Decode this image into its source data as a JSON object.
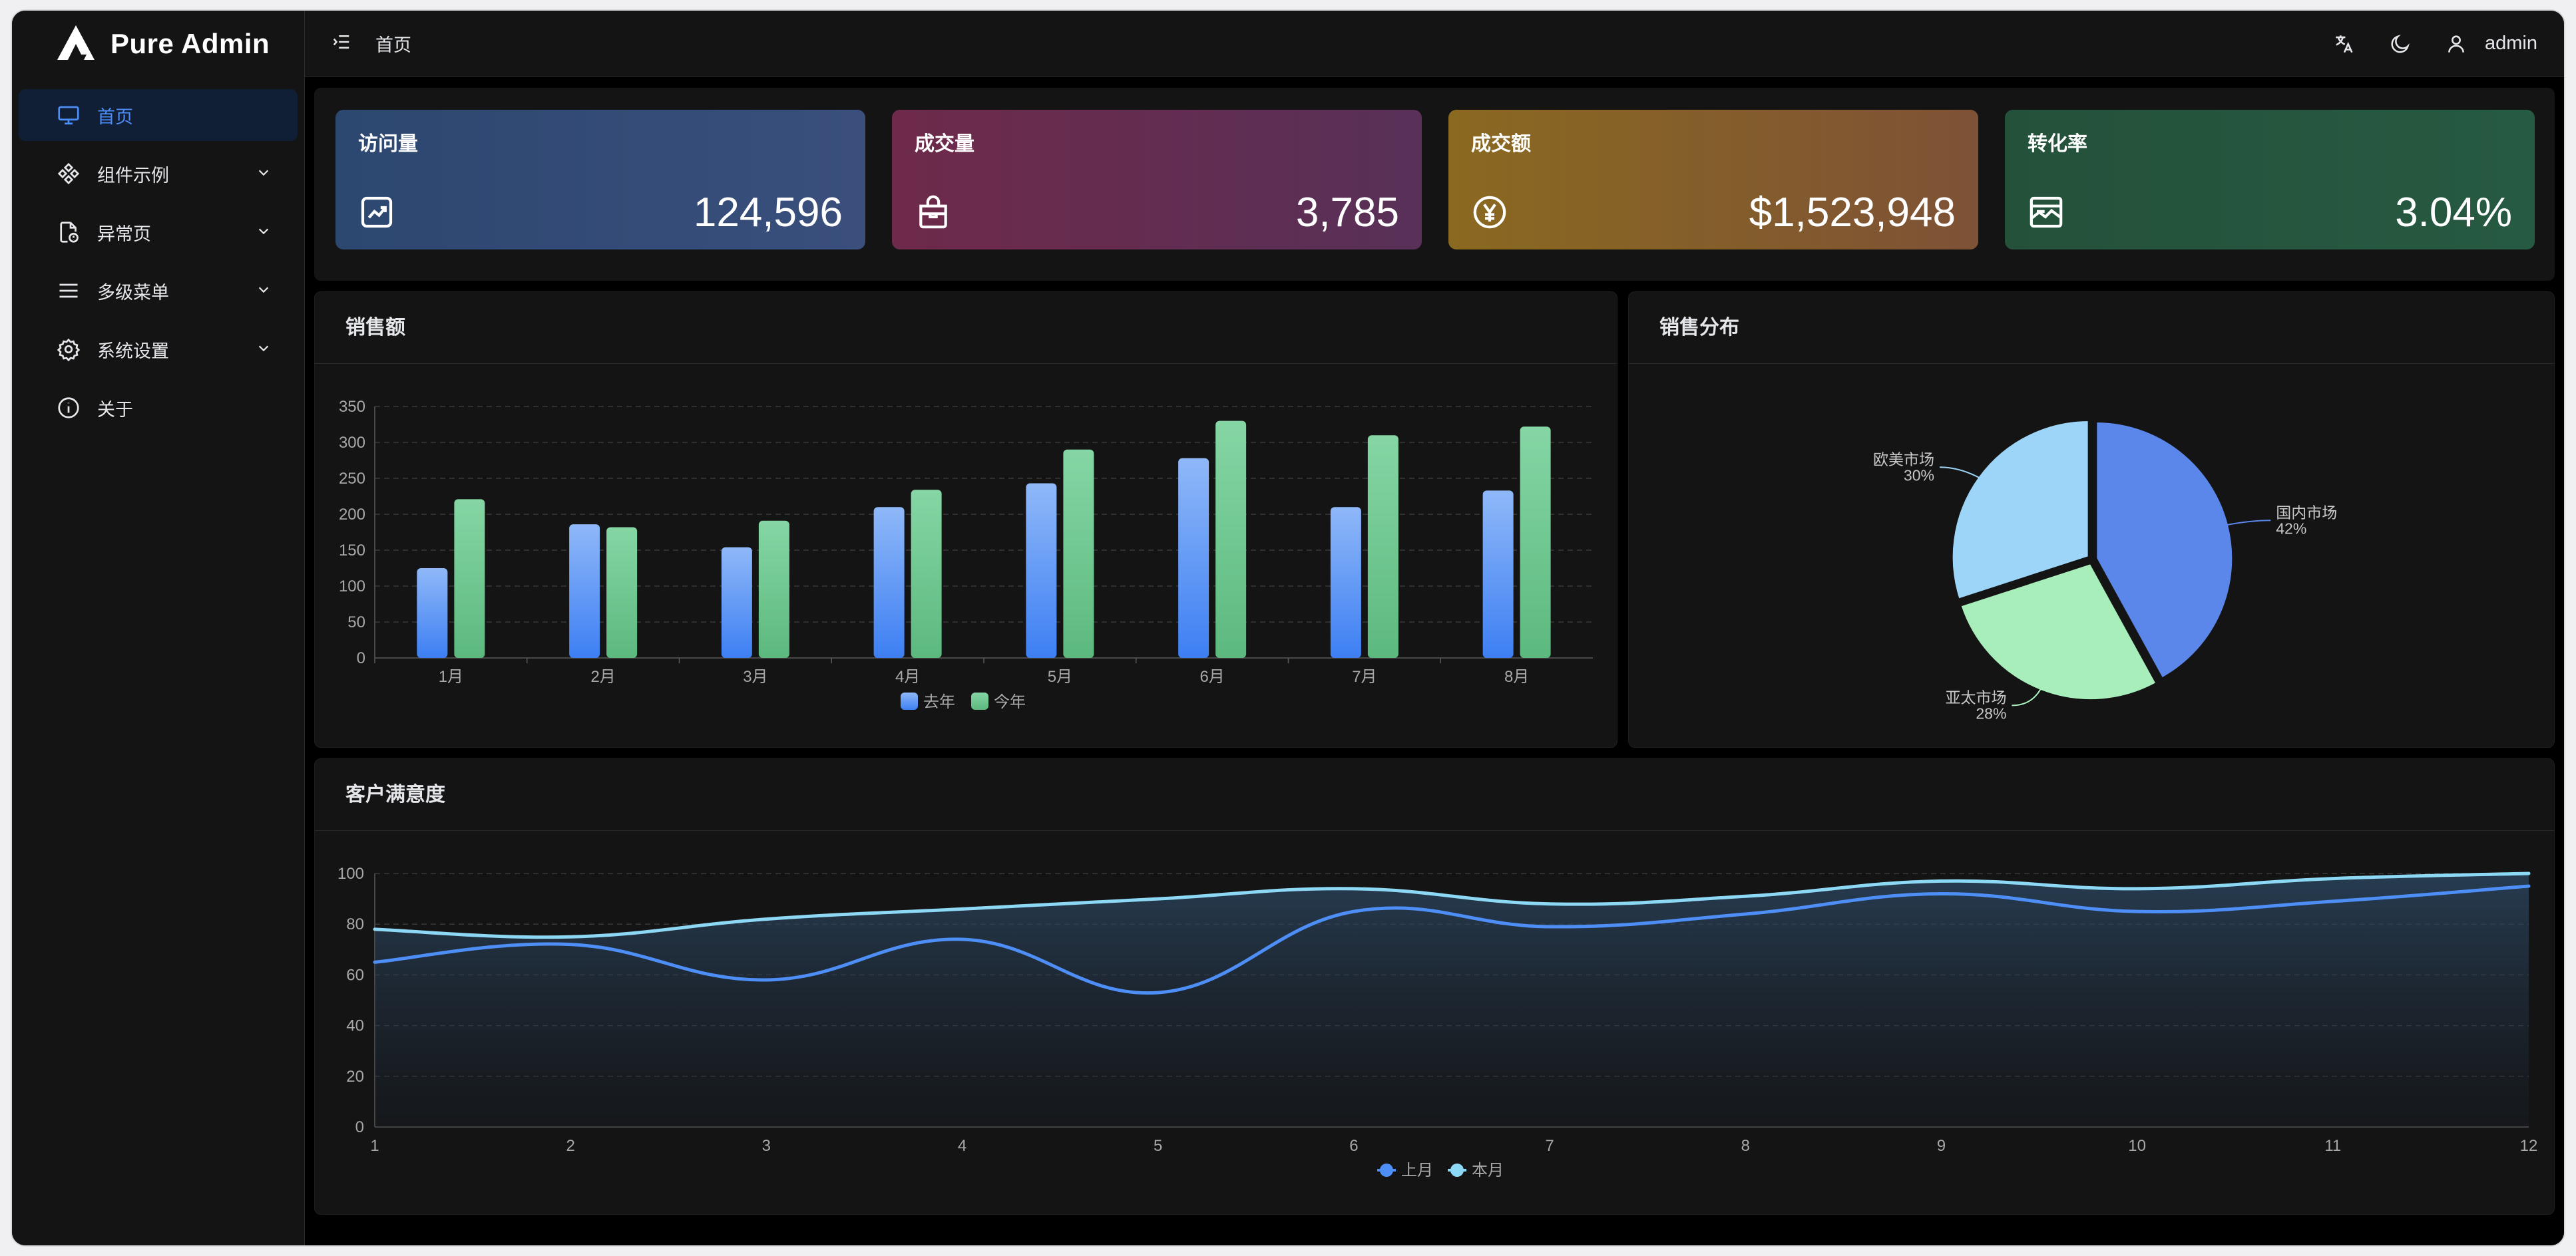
{
  "app": {
    "name": "Pure Admin"
  },
  "sidebar": {
    "items": [
      {
        "label": "首页",
        "icon": "monitor-icon",
        "active": true
      },
      {
        "label": "组件示例",
        "icon": "components-icon",
        "expandable": true
      },
      {
        "label": "异常页",
        "icon": "file-warning-icon",
        "expandable": true
      },
      {
        "label": "多级菜单",
        "icon": "menu-lines-icon",
        "expandable": true
      },
      {
        "label": "系统设置",
        "icon": "gear-icon",
        "expandable": true
      },
      {
        "label": "关于",
        "icon": "info-icon"
      }
    ]
  },
  "header": {
    "breadcrumb": "首页",
    "username": "admin"
  },
  "stats": [
    {
      "title": "访问量",
      "value": "124,596",
      "icon": "trend-chart-icon",
      "color_from": "#2c4770",
      "color_to": "#3a4f7c"
    },
    {
      "title": "成交量",
      "value": "3,785",
      "icon": "shopping-bag-icon",
      "color_from": "#6e2a4a",
      "color_to": "#583058"
    },
    {
      "title": "成交额",
      "value": "$1,523,948",
      "icon": "yen-coin-icon",
      "color_from": "#8a6920",
      "color_to": "#7e5236"
    },
    {
      "title": "转化率",
      "value": "3.04%",
      "icon": "picture-chart-icon",
      "color_from": "#24513a",
      "color_to": "#275a42"
    }
  ],
  "charts": {
    "sales": {
      "title": "销售额"
    },
    "distribution": {
      "title": "销售分布"
    },
    "satisfaction": {
      "title": "客户满意度"
    }
  },
  "chart_data": [
    {
      "type": "bar",
      "title": "销售额",
      "categories": [
        "1月",
        "2月",
        "3月",
        "4月",
        "5月",
        "6月",
        "7月",
        "8月"
      ],
      "series": [
        {
          "name": "去年",
          "values": [
            125,
            186,
            154,
            210,
            243,
            278,
            210,
            233
          ],
          "color": "#4e8ef7"
        },
        {
          "name": "今年",
          "values": [
            221,
            182,
            191,
            234,
            290,
            330,
            310,
            322
          ],
          "color": "#6cc38c"
        }
      ],
      "ylim": [
        0,
        350
      ],
      "yticks": [
        0,
        50,
        100,
        150,
        200,
        250,
        300,
        350
      ],
      "legend": "bottom-center",
      "grid": true
    },
    {
      "type": "pie",
      "title": "销售分布",
      "slices": [
        {
          "name": "国内市场",
          "value": 42,
          "label": "42%",
          "color": "#5b86ea"
        },
        {
          "name": "亚太市场",
          "value": 28,
          "label": "28%",
          "color": "#a8eebb"
        },
        {
          "name": "欧美市场",
          "value": 30,
          "label": "30%",
          "color": "#9dd5f8"
        }
      ]
    },
    {
      "type": "line",
      "title": "客户满意度",
      "x": [
        1,
        2,
        3,
        4,
        5,
        6,
        7,
        8,
        9,
        10,
        11,
        12
      ],
      "series": [
        {
          "name": "上月",
          "values": [
            65,
            72,
            58,
            74,
            53,
            85,
            79,
            84,
            92,
            85,
            89,
            95
          ],
          "color": "#4e8ef7"
        },
        {
          "name": "本月",
          "values": [
            78,
            75,
            82,
            86,
            90,
            94,
            88,
            91,
            97,
            94,
            98,
            100
          ],
          "color": "#8cd8f5"
        }
      ],
      "ylim": [
        0,
        100
      ],
      "yticks": [
        0,
        20,
        40,
        60,
        80,
        100
      ],
      "legend": "bottom-center",
      "grid": true
    }
  ]
}
